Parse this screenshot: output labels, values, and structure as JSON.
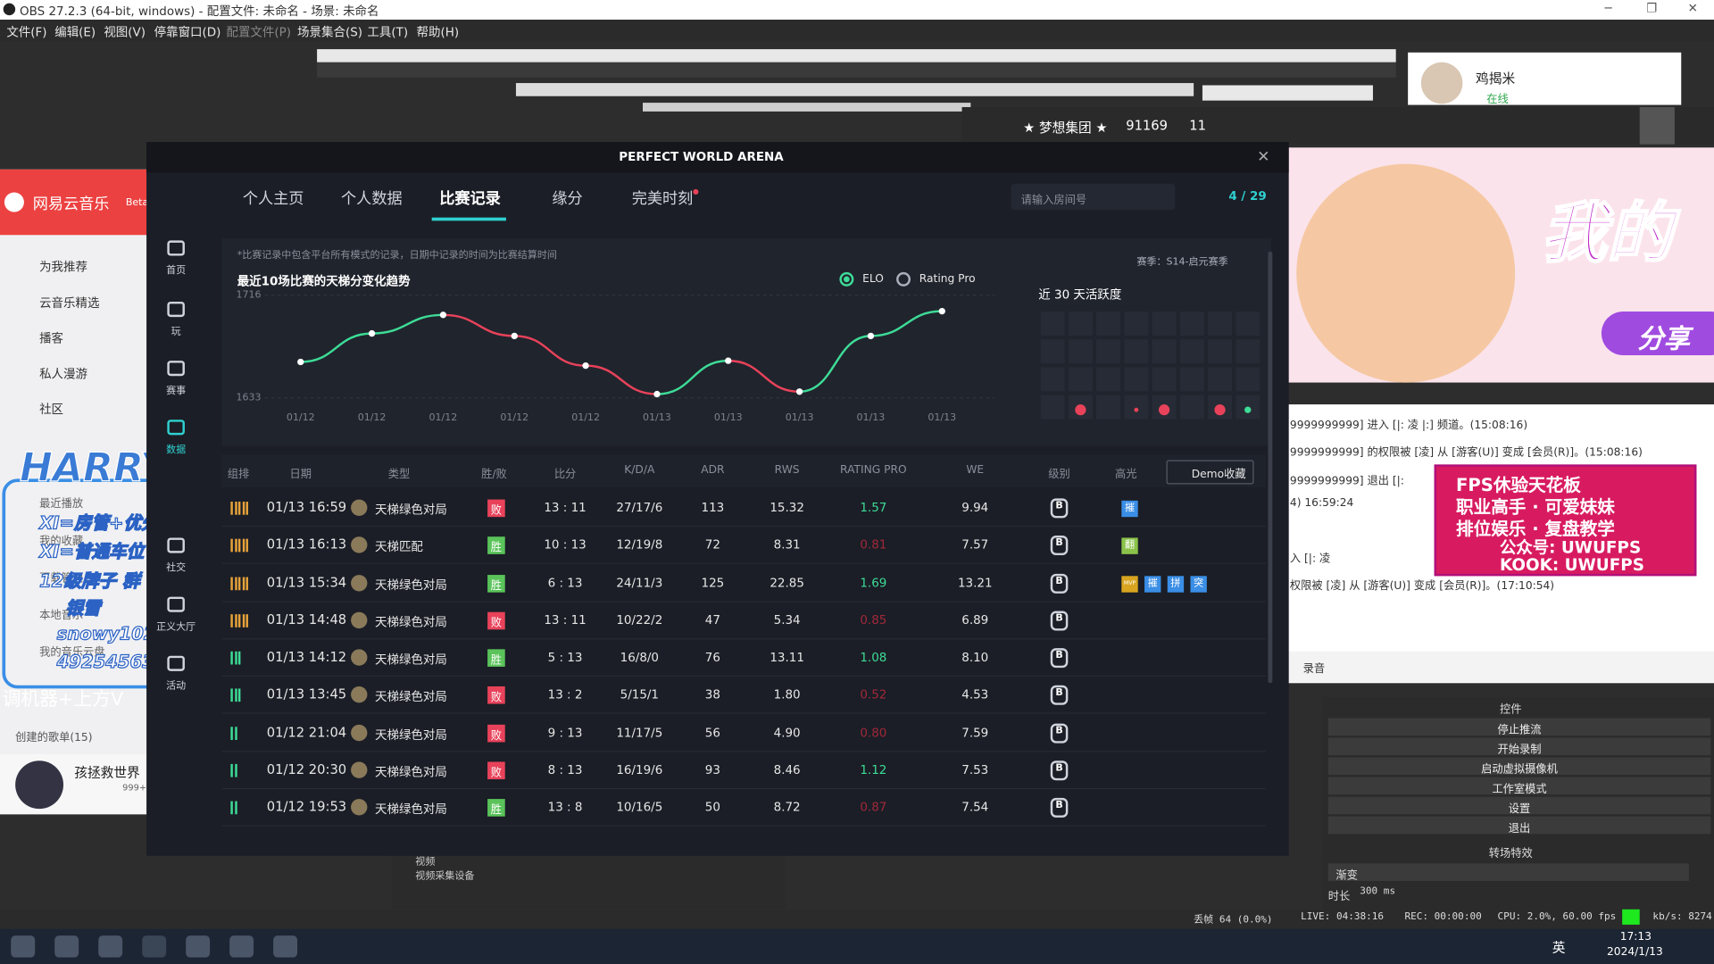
{
  "obs": {
    "title": "OBS 27.2.3 (64-bit, windows) - 配置文件: 未命名 - 场景: 未命名",
    "menu": [
      "文件(F)",
      "编辑(E)",
      "视图(V)",
      "停靠窗口(D)",
      "配置文件(P)",
      "场景集合(S)",
      "工具(T)",
      "帮助(H)"
    ],
    "controls_title": "控件",
    "controls": [
      "停止推流",
      "开始录制",
      "启动虚拟摄像机",
      "工作室模式",
      "设置",
      "退出"
    ],
    "transition_title": "转场特效",
    "transition": "渐变",
    "duration_label": "时长",
    "duration": "300 ms",
    "sources": [
      "视频",
      "视频采集设备"
    ],
    "status": {
      "dropped": "丢帧 64 (0.0%)",
      "live": "LIVE: 04:38:16",
      "rec": "REC: 00:00:00",
      "cpu": "CPU: 2.0%, 60.00 fps",
      "kbps": "kb/s: 8274"
    }
  },
  "stream_bar": {
    "user": "鸡揭米",
    "status": "在线",
    "group": "★ 梦想集团 ★",
    "room": "91169",
    "viewers": "11"
  },
  "music": {
    "app": "网易云音乐",
    "beta": "Beta",
    "nav": [
      "为我推荐",
      "云音乐精选",
      "播客",
      "私人漫游",
      "社区"
    ],
    "my": [
      "最近播放",
      "我的收藏",
      "下载管理",
      "本地音乐",
      "我的音乐云盘"
    ],
    "playlists": "创建的歌单(15)",
    "song": "孩拯救世界",
    "likes": "999+"
  },
  "overlay": {
    "name": "HARRY",
    "lines": [
      "XI=房管+优先车位",
      "XI=普通车位",
      "12级牌子",
      "群",
      "银雪",
      "snowy1023~",
      "492545632"
    ],
    "footer": "调机器+上方V"
  },
  "pwa": {
    "title": "PERFECT WORLD ARENA",
    "tabs": [
      "个人主页",
      "个人数据",
      "比赛记录",
      "缘分",
      "完美时刻"
    ],
    "search": "请输入房间号",
    "online": "4 / 29",
    "sidebar": [
      "首页",
      "玩",
      "赛事",
      "数据",
      "社交",
      "正义大厅",
      "活动"
    ],
    "note": "*比赛记录中包含平台所有模式的记录，日期中记录的时间为比赛结算时间",
    "season": "赛季：S14-启元赛季",
    "activity_title": "近 30 天活跃度",
    "trend_chart": {
      "type": "line",
      "title": "最近10场比赛的天梯分变化趋势",
      "legend": [
        "ELO",
        "Rating Pro"
      ],
      "categories": [
        "01/12",
        "01/12",
        "01/12",
        "01/12",
        "01/12",
        "01/13",
        "01/13",
        "01/13",
        "01/13",
        "01/13"
      ],
      "values": [
        1662,
        1685,
        1700,
        1683,
        1659,
        1636,
        1663,
        1638,
        1683,
        1703
      ],
      "ylim": [
        1633,
        1716
      ],
      "yticks": [
        1633,
        1716
      ],
      "up_color": "#3ddc97",
      "down_color": "#e8425a"
    },
    "table": {
      "columns": [
        "组排",
        "日期",
        "类型",
        "胜/败",
        "比分",
        "K/D/A",
        "ADR",
        "RWS",
        "RATING PRO",
        "WE",
        "级别",
        "高光"
      ],
      "demo": "Demo收藏",
      "rows": [
        {
          "party": 5,
          "date": "01/13 16:59",
          "type": "天梯绿色对局",
          "result": "败",
          "result_color": "#e8425a",
          "score": "13 : 11",
          "kda": "27/17/6",
          "adr": "113",
          "rws": "15.32",
          "rating": "1.57",
          "rating_color": "#3ddc97",
          "we": "9.94",
          "rank": "B",
          "highlights": [
            "摧"
          ]
        },
        {
          "party": 5,
          "date": "01/13 16:13",
          "type": "天梯匹配",
          "result": "胜",
          "result_color": "#5ac35a",
          "score": "10 : 13",
          "kda": "12/19/8",
          "adr": "72",
          "rws": "8.31",
          "rating": "0.81",
          "rating_color": "#a0283a",
          "we": "7.57",
          "rank": "B",
          "highlights": [
            "翻"
          ]
        },
        {
          "party": 5,
          "date": "01/13 15:34",
          "type": "天梯绿色对局",
          "result": "胜",
          "result_color": "#5ac35a",
          "score": "6 : 13",
          "kda": "24/11/3",
          "adr": "125",
          "rws": "22.85",
          "rating": "1.69",
          "rating_color": "#3ddc97",
          "we": "13.21",
          "rank": "B",
          "highlights": [
            "MVP",
            "摧",
            "拼",
            "突"
          ]
        },
        {
          "party": 5,
          "date": "01/13 14:48",
          "type": "天梯绿色对局",
          "result": "败",
          "result_color": "#e8425a",
          "score": "13 : 11",
          "kda": "10/22/2",
          "adr": "47",
          "rws": "5.34",
          "rating": "0.85",
          "rating_color": "#a0283a",
          "we": "6.89",
          "rank": "B",
          "highlights": []
        },
        {
          "party": 3,
          "date": "01/13 14:12",
          "type": "天梯绿色对局",
          "result": "胜",
          "result_color": "#5ac35a",
          "score": "5 : 13",
          "kda": "16/8/0",
          "adr": "76",
          "rws": "13.11",
          "rating": "1.08",
          "rating_color": "#3ddc97",
          "we": "8.10",
          "rank": "B",
          "highlights": []
        },
        {
          "party": 3,
          "date": "01/13 13:45",
          "type": "天梯绿色对局",
          "result": "败",
          "result_color": "#e8425a",
          "score": "13 : 2",
          "kda": "5/15/1",
          "adr": "38",
          "rws": "1.80",
          "rating": "0.52",
          "rating_color": "#a0283a",
          "we": "4.53",
          "rank": "B",
          "highlights": []
        },
        {
          "party": 2,
          "date": "01/12 21:04",
          "type": "天梯绿色对局",
          "result": "败",
          "result_color": "#e8425a",
          "score": "9 : 13",
          "kda": "11/17/5",
          "adr": "56",
          "rws": "4.90",
          "rating": "0.80",
          "rating_color": "#a0283a",
          "we": "7.59",
          "rank": "B",
          "highlights": []
        },
        {
          "party": 2,
          "date": "01/12 20:30",
          "type": "天梯绿色对局",
          "result": "败",
          "result_color": "#e8425a",
          "score": "8 : 13",
          "kda": "16/19/6",
          "adr": "93",
          "rws": "8.46",
          "rating": "1.12",
          "rating_color": "#3ddc97",
          "we": "7.53",
          "rank": "B",
          "highlights": []
        },
        {
          "party": 2,
          "date": "01/12 19:53",
          "type": "天梯绿色对局",
          "result": "胜",
          "result_color": "#5ac35a",
          "score": "13 : 8",
          "kda": "10/16/5",
          "adr": "50",
          "rws": "8.72",
          "rating": "0.87",
          "rating_color": "#a0283a",
          "we": "7.54",
          "rank": "B",
          "highlights": []
        }
      ]
    }
  },
  "chat": {
    "banner": [
      "我的",
      "分享"
    ],
    "lines": [
      "9999999999] 进入 [|:  凌  |:] 频道。(15:08:16)",
      "9999999999] 的权限被 [凌] 从 [游客(U)] 变成 [会员(R)]。(15:08:16)",
      "9999999999] 退出 [|:",
      "4) 16:59:24",
      "入 [|:   凌",
      "权限被 [凌] 从 [游客(U)] 变成 [会员(R)]。(17:10:54)"
    ],
    "ad": [
      "FPS休验天花板",
      "职业高手 · 可爱妹妹",
      "排位娱乐 · 复盘教学",
      "公众号: UWUFPS",
      "KOOK: UWUFPS"
    ],
    "record": "录音"
  },
  "taskbar": {
    "ime": "英",
    "time": "17:13",
    "date": "2024/1/13"
  }
}
